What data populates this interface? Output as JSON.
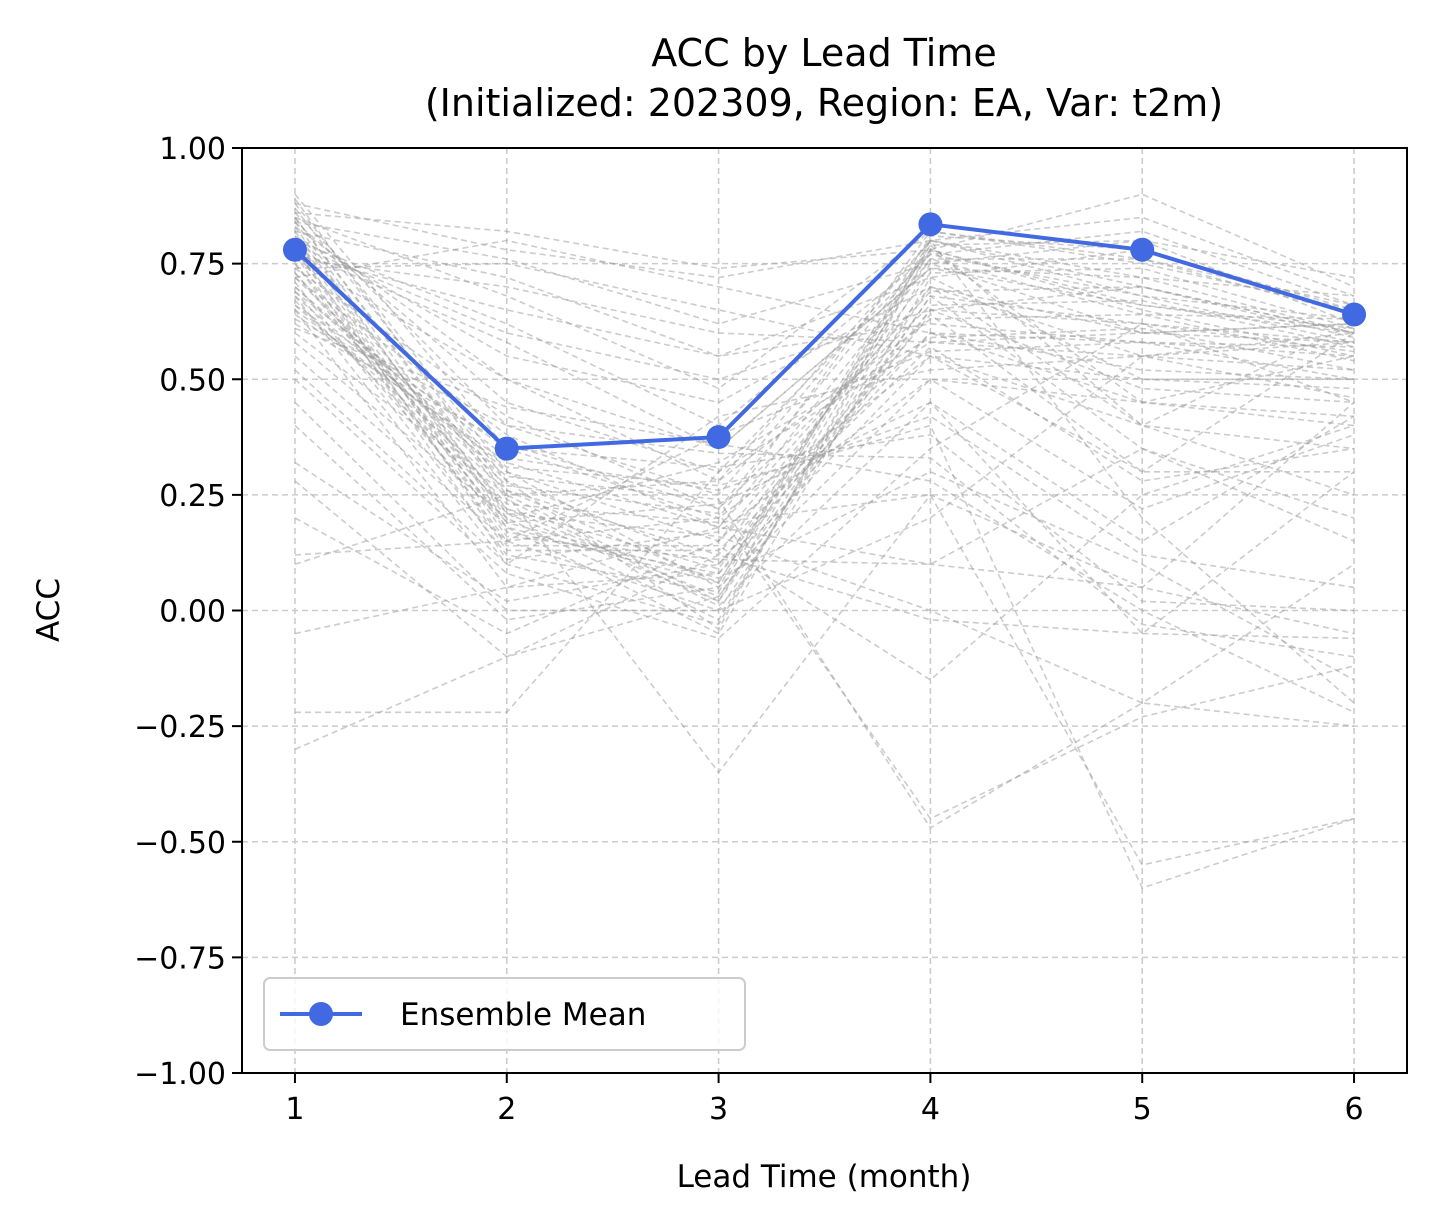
{
  "chart_data": {
    "type": "line",
    "title": "ACC by Lead Time",
    "subtitle": "(Initialized: 202309, Region: EA, Var: t2m)",
    "xlabel": "Lead Time (month)",
    "ylabel": "ACC",
    "x": [
      1,
      2,
      3,
      4,
      5,
      6
    ],
    "xlim": [
      0.75,
      6.25
    ],
    "ylim": [
      -1.0,
      1.0
    ],
    "xticks": [
      "1",
      "2",
      "3",
      "4",
      "5",
      "6"
    ],
    "yticks": [
      "1.00",
      "0.75",
      "0.50",
      "0.25",
      "0.00",
      "−0.25",
      "−0.50",
      "−0.75",
      "−1.00"
    ],
    "ytick_values": [
      1.0,
      0.75,
      0.5,
      0.25,
      0.0,
      -0.25,
      -0.5,
      -0.75,
      -1.0
    ],
    "grid": true,
    "legend_position": "lower-left",
    "series": [
      {
        "name": "Ensemble Mean",
        "color": "#4169e1",
        "values": [
          0.78,
          0.35,
          0.375,
          0.835,
          0.78,
          0.64
        ]
      }
    ],
    "members_color": "#999999",
    "members": [
      [
        0.88,
        0.3,
        0.05,
        0.8,
        0.7,
        0.6
      ],
      [
        0.85,
        0.25,
        0.02,
        0.78,
        0.65,
        0.55
      ],
      [
        0.82,
        0.2,
        -0.02,
        0.75,
        0.6,
        0.62
      ],
      [
        0.8,
        0.22,
        0.03,
        0.7,
        0.55,
        0.58
      ],
      [
        0.78,
        0.18,
        -0.05,
        0.72,
        0.5,
        0.5
      ],
      [
        0.75,
        0.15,
        0.0,
        0.68,
        0.62,
        0.45
      ],
      [
        0.72,
        0.28,
        0.1,
        0.65,
        0.7,
        0.6
      ],
      [
        0.7,
        0.3,
        0.15,
        0.6,
        0.58,
        0.55
      ],
      [
        0.68,
        0.1,
        -0.03,
        0.78,
        0.45,
        0.4
      ],
      [
        0.65,
        0.05,
        0.08,
        0.55,
        0.4,
        0.35
      ],
      [
        0.9,
        0.35,
        0.2,
        0.82,
        0.75,
        0.65
      ],
      [
        0.86,
        0.4,
        0.25,
        0.8,
        0.72,
        0.68
      ],
      [
        0.84,
        0.45,
        0.3,
        0.77,
        0.68,
        0.63
      ],
      [
        0.83,
        0.5,
        0.35,
        0.74,
        0.66,
        0.6
      ],
      [
        0.81,
        0.55,
        0.45,
        0.7,
        0.6,
        0.58
      ],
      [
        0.79,
        0.6,
        0.5,
        0.65,
        0.62,
        0.56
      ],
      [
        0.77,
        0.65,
        0.55,
        0.62,
        0.58,
        0.57
      ],
      [
        0.76,
        0.7,
        0.6,
        0.58,
        0.55,
        0.52
      ],
      [
        0.74,
        0.75,
        0.65,
        0.55,
        0.5,
        0.48
      ],
      [
        0.72,
        0.8,
        0.7,
        0.6,
        0.45,
        0.42
      ],
      [
        0.71,
        0.12,
        0.04,
        0.79,
        0.8,
        0.62
      ],
      [
        0.69,
        0.18,
        0.06,
        0.81,
        0.78,
        0.64
      ],
      [
        0.67,
        0.22,
        0.09,
        0.76,
        0.76,
        0.66
      ],
      [
        0.66,
        0.26,
        0.12,
        0.73,
        0.74,
        0.61
      ],
      [
        0.64,
        0.32,
        0.18,
        0.69,
        0.7,
        0.59
      ],
      [
        0.62,
        0.36,
        0.22,
        0.66,
        0.67,
        0.57
      ],
      [
        0.6,
        0.25,
        0.28,
        0.63,
        0.64,
        0.54
      ],
      [
        0.58,
        0.2,
        0.32,
        0.59,
        0.61,
        0.52
      ],
      [
        0.55,
        0.15,
        0.38,
        0.56,
        0.58,
        0.5
      ],
      [
        0.52,
        0.1,
        0.42,
        0.52,
        0.55,
        0.46
      ],
      [
        0.87,
        0.28,
        -0.04,
        0.8,
        0.2,
        -0.2
      ],
      [
        0.85,
        0.24,
        0.01,
        0.45,
        -0.05,
        0.3
      ],
      [
        0.83,
        0.19,
        0.07,
        0.3,
        0.1,
        -0.15
      ],
      [
        0.8,
        0.16,
        0.11,
        0.1,
        0.35,
        0.2
      ],
      [
        0.78,
        0.14,
        0.14,
        -0.15,
        0.25,
        0.4
      ],
      [
        0.75,
        0.21,
        0.16,
        0.0,
        -0.2,
        0.1
      ],
      [
        0.73,
        0.23,
        0.19,
        0.25,
        -0.55,
        -0.45
      ],
      [
        0.7,
        0.27,
        0.21,
        -0.45,
        -0.23,
        -0.12
      ],
      [
        0.68,
        0.29,
        0.24,
        -0.47,
        -0.2,
        -0.25
      ],
      [
        0.65,
        0.31,
        0.27,
        0.4,
        -0.6,
        -0.45
      ],
      [
        0.5,
        0.08,
        -0.06,
        0.35,
        0.62,
        0.58
      ],
      [
        0.45,
        0.0,
        0.0,
        0.2,
        0.55,
        0.6
      ],
      [
        0.4,
        -0.02,
        0.05,
        0.5,
        0.45,
        0.55
      ],
      [
        0.32,
        0.02,
        0.1,
        0.6,
        0.52,
        0.5
      ],
      [
        0.28,
        -0.1,
        0.03,
        0.65,
        0.48,
        0.45
      ],
      [
        0.2,
        -0.05,
        0.15,
        0.7,
        0.4,
        0.62
      ],
      [
        0.12,
        0.15,
        0.2,
        0.55,
        0.3,
        0.6
      ],
      [
        0.1,
        0.25,
        -0.35,
        0.25,
        0.05,
        0.45
      ],
      [
        -0.05,
        0.05,
        0.18,
        0.1,
        0.05,
        -0.05
      ],
      [
        -0.22,
        -0.22,
        0.3,
        0.58,
        0.6,
        0.62
      ],
      [
        -0.3,
        -0.1,
        0.12,
        -0.02,
        -0.05,
        -0.06
      ],
      [
        0.86,
        0.82,
        0.74,
        0.78,
        0.9,
        0.7
      ],
      [
        0.88,
        0.78,
        0.72,
        0.8,
        0.85,
        0.68
      ],
      [
        0.84,
        0.76,
        0.62,
        0.75,
        0.8,
        0.72
      ],
      [
        0.82,
        0.72,
        0.55,
        0.72,
        0.78,
        0.65
      ],
      [
        0.85,
        0.68,
        0.48,
        0.82,
        0.76,
        0.64
      ],
      [
        0.8,
        0.62,
        0.4,
        0.77,
        0.82,
        0.66
      ],
      [
        0.78,
        0.58,
        0.35,
        0.74,
        0.72,
        0.6
      ],
      [
        0.76,
        0.5,
        0.28,
        0.8,
        0.68,
        0.58
      ],
      [
        0.74,
        0.42,
        0.22,
        0.78,
        0.66,
        0.61
      ],
      [
        0.72,
        0.38,
        0.18,
        0.76,
        0.64,
        0.63
      ],
      [
        0.89,
        0.26,
        0.06,
        0.79,
        0.4,
        0.25
      ],
      [
        0.84,
        0.21,
        0.02,
        0.68,
        0.35,
        0.15
      ],
      [
        0.81,
        0.17,
        0.08,
        0.64,
        0.3,
        0.3
      ],
      [
        0.79,
        0.13,
        0.13,
        0.57,
        0.28,
        0.35
      ],
      [
        0.77,
        0.11,
        0.17,
        0.5,
        0.22,
        0.38
      ],
      [
        0.73,
        0.19,
        0.23,
        0.45,
        0.15,
        0.42
      ],
      [
        0.69,
        0.33,
        0.26,
        0.42,
        0.12,
        0.05
      ],
      [
        0.66,
        0.35,
        0.31,
        0.38,
        0.02,
        0.0
      ],
      [
        0.63,
        0.4,
        0.34,
        0.33,
        -0.03,
        -0.1
      ],
      [
        0.61,
        0.44,
        0.36,
        0.28,
        0.0,
        -0.22
      ]
    ]
  }
}
